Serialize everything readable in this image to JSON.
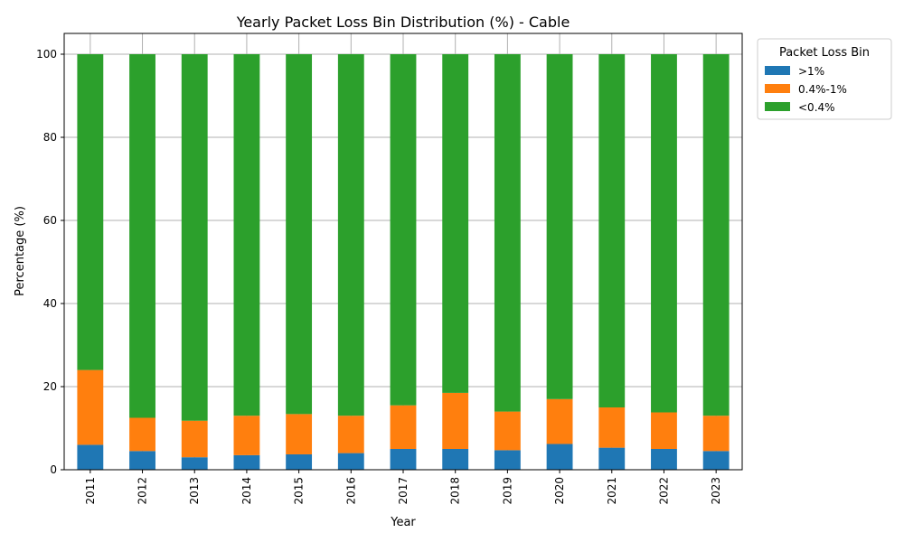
{
  "chart_data": {
    "type": "bar",
    "stacked": true,
    "title": "Yearly Packet Loss Bin Distribution (%) - Cable",
    "xlabel": "Year",
    "ylabel": "Percentage (%)",
    "ylim": [
      0,
      105
    ],
    "yticks": [
      0,
      20,
      40,
      60,
      80,
      100
    ],
    "grid": true,
    "legend_title": "Packet Loss Bin",
    "legend_position": "outside-top-right",
    "categories": [
      "2011",
      "2012",
      "2013",
      "2014",
      "2015",
      "2016",
      "2017",
      "2018",
      "2019",
      "2020",
      "2021",
      "2022",
      "2023"
    ],
    "series": [
      {
        "name": ">1%",
        "color": "#1f77b4",
        "values": [
          6.0,
          4.5,
          3.0,
          3.5,
          3.7,
          4.0,
          5.0,
          5.0,
          4.7,
          6.2,
          5.3,
          5.0,
          4.5
        ]
      },
      {
        "name": "0.4%-1%",
        "color": "#ff7f0e",
        "values": [
          18.0,
          8.0,
          8.8,
          9.5,
          9.7,
          9.0,
          10.5,
          13.5,
          9.3,
          10.8,
          9.7,
          8.8,
          8.5
        ]
      },
      {
        "name": "<0.4%",
        "color": "#2ca02c",
        "values": [
          76.0,
          87.5,
          88.2,
          87.0,
          86.6,
          87.0,
          84.5,
          81.5,
          86.0,
          83.0,
          85.0,
          86.2,
          87.0
        ]
      }
    ]
  }
}
